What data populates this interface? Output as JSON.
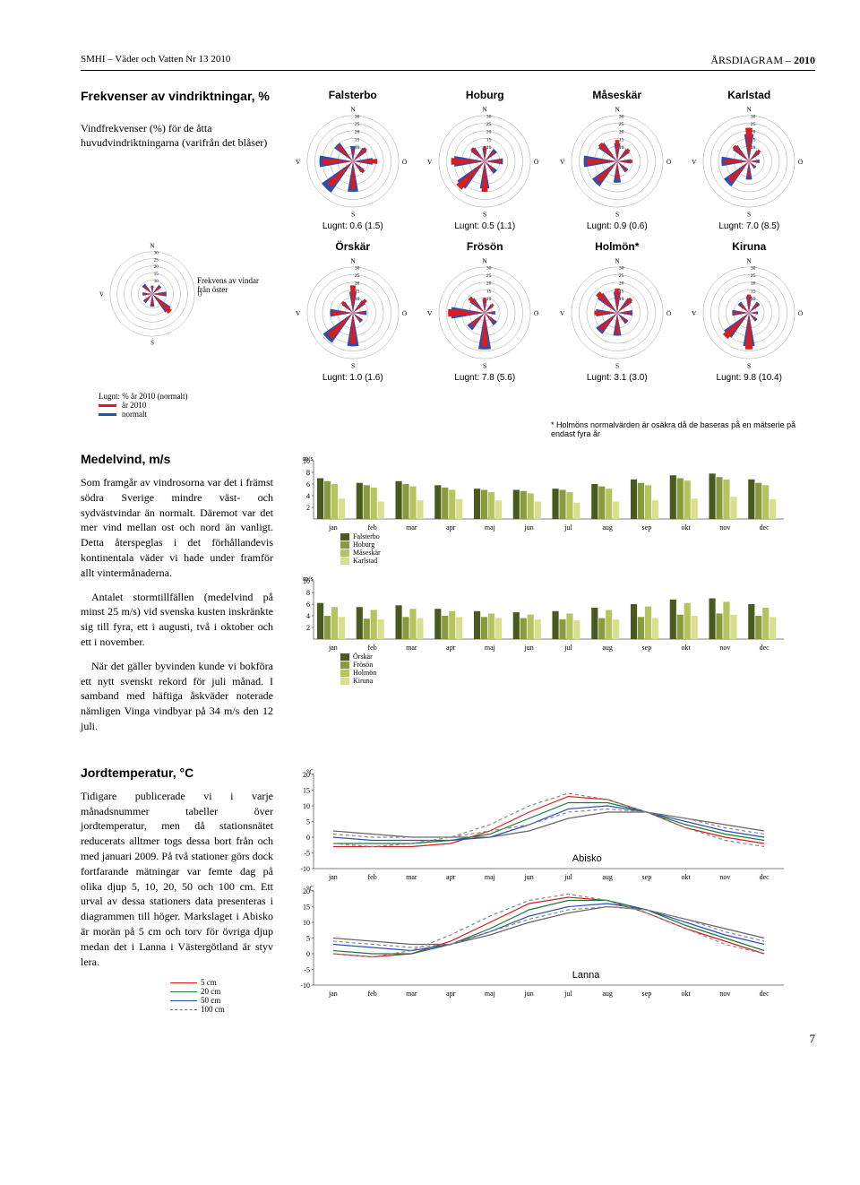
{
  "header": {
    "left": "SMHI – Väder och Vatten Nr 13 2010",
    "right_prefix": "ÅRSDIAGRAM – ",
    "right_bold": "2010"
  },
  "freq": {
    "title": "Frekvenser av vindriktningar, %",
    "desc": "Vindfrekvenser (%) för de åtta huvudvindriktningarna (varifrån det blåser)",
    "legend_note": "Frekvens av vindar från öster",
    "lugnt_note": "Lugnt: % år 2010 (normalt)",
    "leg_2010": "år 2010",
    "leg_norm": "normalt",
    "ring_labels": [
      "5",
      "10",
      "15",
      "20",
      "25",
      "30"
    ],
    "compass": {
      "N": "N",
      "S": "S",
      "O": "Ö",
      "V": "V"
    },
    "colors": {
      "year": "#d91c1c",
      "normal": "#2b4fb8",
      "ring": "#999"
    },
    "roses_row1": [
      {
        "name": "Falsterbo",
        "lugnt": "Lugnt: 0.6 (1.5)",
        "y": [
          8,
          12,
          16,
          10,
          18,
          22,
          20,
          14
        ],
        "n": [
          10,
          11,
          13,
          9,
          20,
          25,
          22,
          15
        ]
      },
      {
        "name": "Hoburg",
        "lugnt": "Lugnt: 0.5 (1.1)",
        "y": [
          10,
          9,
          11,
          8,
          20,
          24,
          22,
          12
        ],
        "n": [
          9,
          10,
          12,
          10,
          18,
          22,
          20,
          11
        ]
      },
      {
        "name": "Måseskär",
        "lugnt": "Lugnt: 0.9 (0.6)",
        "y": [
          14,
          11,
          10,
          8,
          12,
          18,
          20,
          16
        ],
        "n": [
          12,
          10,
          9,
          9,
          14,
          20,
          22,
          15
        ]
      },
      {
        "name": "Karlstad",
        "lugnt": "Lugnt: 7.0 (8.5)",
        "y": [
          22,
          10,
          6,
          5,
          10,
          18,
          16,
          14
        ],
        "n": [
          18,
          9,
          7,
          6,
          12,
          20,
          18,
          13
        ]
      }
    ],
    "roses_row2": [
      {
        "name": "Örskär",
        "lugnt": "Lugnt: 1.0 (1.6)",
        "y": [
          18,
          12,
          8,
          7,
          20,
          22,
          14,
          10
        ],
        "n": [
          14,
          10,
          9,
          8,
          22,
          24,
          15,
          9
        ]
      },
      {
        "name": "Frösön",
        "lugnt": "Lugnt: 7.8 (5.6)",
        "y": [
          10,
          8,
          6,
          8,
          22,
          12,
          24,
          14
        ],
        "n": [
          9,
          7,
          7,
          10,
          24,
          14,
          22,
          12
        ]
      },
      {
        "name": "Holmön*",
        "lugnt": "Lugnt: 3.1 (3.0)",
        "y": [
          16,
          13,
          9,
          8,
          14,
          16,
          15,
          18
        ],
        "n": [
          14,
          12,
          10,
          9,
          15,
          17,
          14,
          16
        ]
      },
      {
        "name": "Kiruna",
        "lugnt": "Lugnt: 9.8 (10.4)",
        "y": [
          12,
          8,
          5,
          6,
          24,
          22,
          10,
          8
        ],
        "n": [
          11,
          9,
          6,
          7,
          22,
          20,
          11,
          9
        ]
      }
    ],
    "legend_rose": {
      "y": [
        5,
        7,
        9,
        18,
        8,
        7,
        6,
        8
      ],
      "n": [
        6,
        8,
        10,
        16,
        9,
        8,
        7,
        9
      ]
    },
    "holmon_note": "* Holmöns normalvärden är osäkra då de baseras på en mätserie på endast fyra år"
  },
  "medelvind": {
    "title": "Medelvind, m/s",
    "p1": "Som framgår av vindrosorna var det i främst södra Sverige mindre väst- och sydvästvindar än normalt. Däremot var det mer vind mellan ost och nord än vanligt. Detta återspeglas i det förhållandevis kontinentala väder vi hade under framför allt vintermånaderna.",
    "p2": "Antalet stormtillfällen (medelvind på minst 25 m/s) vid svenska kusten inskränkte sig till fyra, ett i augusti, två i oktober och ett i november.",
    "p3": "När det gäller byvinden kunde vi bokföra ett nytt svenskt rekord för juli månad. I samband med häftiga åskväder noterade nämligen Vinga vindbyar på 34 m/s den 12 juli.",
    "ylabel": "m/s",
    "yticks": [
      2,
      4,
      6,
      8,
      10
    ],
    "months": [
      "jan",
      "feb",
      "mar",
      "apr",
      "maj",
      "jun",
      "jul",
      "aug",
      "sep",
      "okt",
      "nov",
      "dec"
    ],
    "legends1": [
      "Falsterbo",
      "Hoburg",
      "Måseskär",
      "Karlstad"
    ],
    "legends2": [
      "Örskär",
      "Frösön",
      "Holmön",
      "Kiruna"
    ],
    "colors": [
      "#4a5a1f",
      "#8a9b3f",
      "#b5c45f",
      "#d8e08f"
    ],
    "chart1": [
      [
        7.0,
        6.2,
        6.5,
        5.8,
        5.2,
        5.0,
        5.2,
        6.0,
        6.8,
        7.5,
        7.8,
        6.8
      ],
      [
        6.5,
        5.8,
        6.0,
        5.4,
        5.0,
        4.8,
        5.0,
        5.6,
        6.2,
        7.0,
        7.2,
        6.2
      ],
      [
        6.0,
        5.4,
        5.6,
        5.0,
        4.6,
        4.4,
        4.6,
        5.2,
        5.8,
        6.6,
        6.8,
        5.8
      ],
      [
        3.5,
        3.0,
        3.2,
        3.4,
        3.2,
        3.0,
        2.8,
        3.0,
        3.2,
        3.5,
        3.8,
        3.4
      ]
    ],
    "chart2": [
      [
        6.2,
        5.5,
        5.8,
        5.2,
        4.8,
        4.6,
        4.8,
        5.4,
        6.0,
        6.8,
        7.0,
        6.0
      ],
      [
        4.0,
        3.5,
        3.8,
        4.0,
        3.8,
        3.6,
        3.4,
        3.6,
        3.8,
        4.2,
        4.4,
        4.0
      ],
      [
        5.5,
        5.0,
        5.2,
        4.8,
        4.4,
        4.2,
        4.4,
        5.0,
        5.6,
        6.2,
        6.4,
        5.4
      ],
      [
        3.8,
        3.4,
        3.6,
        3.8,
        3.6,
        3.4,
        3.2,
        3.4,
        3.6,
        4.0,
        4.2,
        3.8
      ]
    ]
  },
  "jord": {
    "title": "Jordtemperatur, °C",
    "p1": "Tidigare publicerade vi i varje månadsnummer tabeller över jordtemperatur, men då stationsnätet reducerats alltmer togs dessa bort från och med januari 2009. På två stationer görs dock fortfarande mätningar var femte dag på olika djup 5, 10, 20, 50 och 100 cm. Ett urval av dessa stationers data presenteras i diagrammen till höger. Markslaget i Abisko är morän på 5 cm och torv för övriga djup medan det i Lanna i Västergötland är styv lera.",
    "ylabel": "°C",
    "yticks": [
      -10,
      -5,
      0,
      5,
      10,
      15,
      20
    ],
    "months": [
      "jan",
      "feb",
      "mar",
      "apr",
      "maj",
      "jun",
      "jul",
      "aug",
      "sep",
      "okt",
      "nov",
      "dec"
    ],
    "legends": [
      "5 cm",
      "20 cm",
      "50 cm",
      "100 cm"
    ],
    "colors": [
      "#d91c1c",
      "#1a7a3a",
      "#2b4fb8",
      "#666"
    ],
    "label1": "Abisko",
    "label2": "Lanna",
    "chart1": [
      [
        -3,
        -3,
        -3,
        -2,
        2,
        8,
        13,
        12,
        8,
        3,
        0,
        -2
      ],
      [
        -2,
        -2,
        -2,
        -1,
        1,
        6,
        11,
        11,
        8,
        4,
        1,
        -1
      ],
      [
        0,
        -1,
        -1,
        -1,
        0,
        4,
        9,
        10,
        8,
        5,
        2,
        0
      ],
      [
        2,
        1,
        0,
        0,
        0,
        2,
        6,
        8,
        8,
        6,
        4,
        2
      ]
    ],
    "chart1_dashed": [
      [
        -2,
        -3,
        -2,
        0,
        4,
        10,
        14,
        12,
        8,
        3,
        -1,
        -3
      ],
      [
        1,
        0,
        0,
        0,
        2,
        4,
        8,
        9,
        8,
        6,
        3,
        1
      ]
    ],
    "chart2": [
      [
        0,
        -1,
        0,
        4,
        10,
        16,
        18,
        17,
        13,
        8,
        4,
        0
      ],
      [
        1,
        0,
        0,
        3,
        8,
        14,
        17,
        17,
        14,
        9,
        5,
        1
      ],
      [
        3,
        2,
        1,
        3,
        7,
        12,
        15,
        16,
        14,
        10,
        6,
        3
      ],
      [
        5,
        4,
        3,
        3,
        6,
        10,
        13,
        15,
        14,
        11,
        8,
        5
      ]
    ],
    "chart2_dashed": [
      [
        0,
        -1,
        1,
        6,
        12,
        17,
        19,
        17,
        13,
        8,
        3,
        0
      ],
      [
        4,
        3,
        2,
        3,
        7,
        11,
        14,
        15,
        14,
        11,
        7,
        4
      ]
    ]
  },
  "page_num": "7"
}
